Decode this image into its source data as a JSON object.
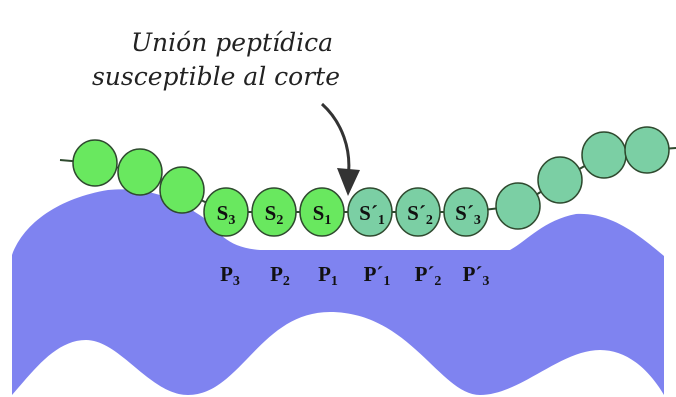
{
  "caption": {
    "line1": "Unión peptídica",
    "line2": "susceptible al corte"
  },
  "colors": {
    "enzyme": "#7f83f0",
    "residue_green": "#69e85f",
    "residue_teal": "#7bcfa4",
    "outline": "#2f4a2f",
    "text": "#111111"
  },
  "s_sites": [
    {
      "main": "S",
      "sub": "3"
    },
    {
      "main": "S",
      "sub": "2"
    },
    {
      "main": "S",
      "sub": "1"
    },
    {
      "main": "S´",
      "sub": "1"
    },
    {
      "main": "S´",
      "sub": "2"
    },
    {
      "main": "S´",
      "sub": "3"
    }
  ],
  "p_sites": [
    {
      "main": "P",
      "sub": "3"
    },
    {
      "main": "P",
      "sub": "2"
    },
    {
      "main": "P",
      "sub": "1"
    },
    {
      "main": "P´",
      "sub": "1"
    },
    {
      "main": "P´",
      "sub": "2"
    },
    {
      "main": "P´",
      "sub": "3"
    }
  ]
}
